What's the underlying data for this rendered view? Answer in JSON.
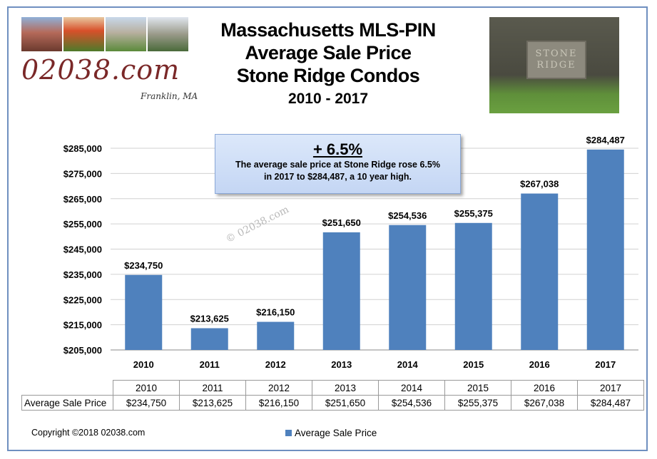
{
  "title": {
    "line1": "Massachusetts MLS-PIN",
    "line2": "Average Sale Price",
    "line3": "Stone Ridge Condos",
    "line4": "2010 - 2017"
  },
  "logo": {
    "text": "02038.com",
    "subtitle": "Franklin, MA"
  },
  "sign": {
    "line1": "STONE",
    "line2": "RIDGE"
  },
  "callout": {
    "headline": "+ 6.5%",
    "line1": "The average sale price at Stone Ridge rose 6.5%",
    "line2": "in 2017 to $284,487, a 10 year high."
  },
  "watermark": "© 02038.com",
  "copyright": "Copyright ©2018 02038.com",
  "colors": {
    "bar": "#4f81bd",
    "frame": "#6f8fc0",
    "grid": "#d0d0d0",
    "callout": "#c4d6f4"
  },
  "chart_data": {
    "type": "bar",
    "categories": [
      "2010",
      "2011",
      "2012",
      "2013",
      "2014",
      "2015",
      "2016",
      "2017"
    ],
    "series": [
      {
        "name": "Average Sale Price",
        "values": [
          234750,
          213625,
          216150,
          251650,
          254536,
          255375,
          267038,
          284487
        ]
      }
    ],
    "data_labels": [
      "$234,750",
      "$213,625",
      "$216,150",
      "$251,650",
      "$254,536",
      "$255,375",
      "$267,038",
      "$284,487"
    ],
    "ylim": [
      205000,
      285000
    ],
    "y_ticks": [
      205000,
      215000,
      225000,
      235000,
      245000,
      255000,
      265000,
      275000,
      285000
    ],
    "y_tick_labels": [
      "$205,000",
      "$215,000",
      "$225,000",
      "$235,000",
      "$245,000",
      "$255,000",
      "$265,000",
      "$275,000",
      "$285,000"
    ],
    "grid": true,
    "legend": "bottom",
    "table_label": "Average Sale Price",
    "table_values": [
      "$234,750",
      "$213,625",
      "$216,150",
      "$251,650",
      "$254,536",
      "$255,375",
      "$267,038",
      "$284,487"
    ]
  }
}
